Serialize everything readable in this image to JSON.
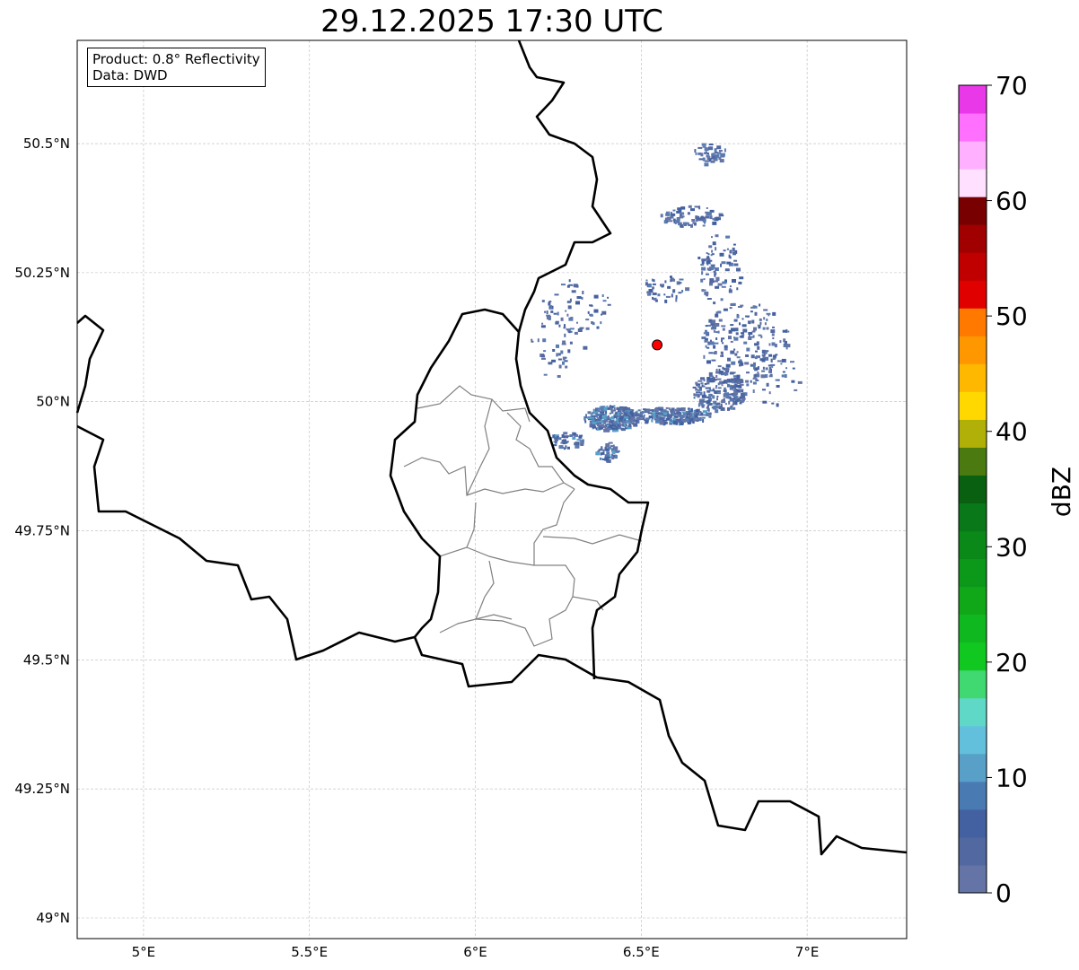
{
  "title": "29.12.2025 17:30 UTC",
  "info": {
    "product": "Product: 0.8° Reflectivity",
    "data": "Data: DWD"
  },
  "map": {
    "lon_range": [
      4.8,
      7.3
    ],
    "lat_range": [
      48.96,
      50.7
    ],
    "lon_ticks": [
      {
        "v": 5,
        "label": "5°E"
      },
      {
        "v": 5.5,
        "label": "5.5°E"
      },
      {
        "v": 6,
        "label": "6°E"
      },
      {
        "v": 6.5,
        "label": "6.5°E"
      },
      {
        "v": 7,
        "label": "7°E"
      }
    ],
    "lat_ticks": [
      {
        "v": 49,
        "label": "49°N"
      },
      {
        "v": 49.25,
        "label": "49.25°N"
      },
      {
        "v": 49.5,
        "label": "49.5°N"
      },
      {
        "v": 49.75,
        "label": "49.75°N"
      },
      {
        "v": 50,
        "label": "50°N"
      },
      {
        "v": 50.25,
        "label": "50.25°N"
      },
      {
        "v": 50.5,
        "label": "50.5°N"
      }
    ],
    "radar_site": {
      "lon": 6.548,
      "lat": 50.11,
      "color": "#ff0000"
    }
  },
  "colorbar": {
    "label": "dBZ",
    "min": 0,
    "max": 70,
    "ticks": [
      "0",
      "10",
      "20",
      "30",
      "40",
      "50",
      "60",
      "70"
    ],
    "colors": [
      "#6474a6",
      "#5268a0",
      "#4360a0",
      "#4a7ab2",
      "#58a0c8",
      "#62c0dc",
      "#60d8c8",
      "#40d870",
      "#10c820",
      "#10b820",
      "#10a818",
      "#0c9818",
      "#0a8818",
      "#087818",
      "#086010",
      "#4a7a10",
      "#b0b008",
      "#ffd800",
      "#ffb800",
      "#ff9800",
      "#ff7800",
      "#e00000",
      "#c00000",
      "#a00000",
      "#780000",
      "#ffe0ff",
      "#ffb0ff",
      "#ff70ff",
      "#e838e8"
    ]
  }
}
